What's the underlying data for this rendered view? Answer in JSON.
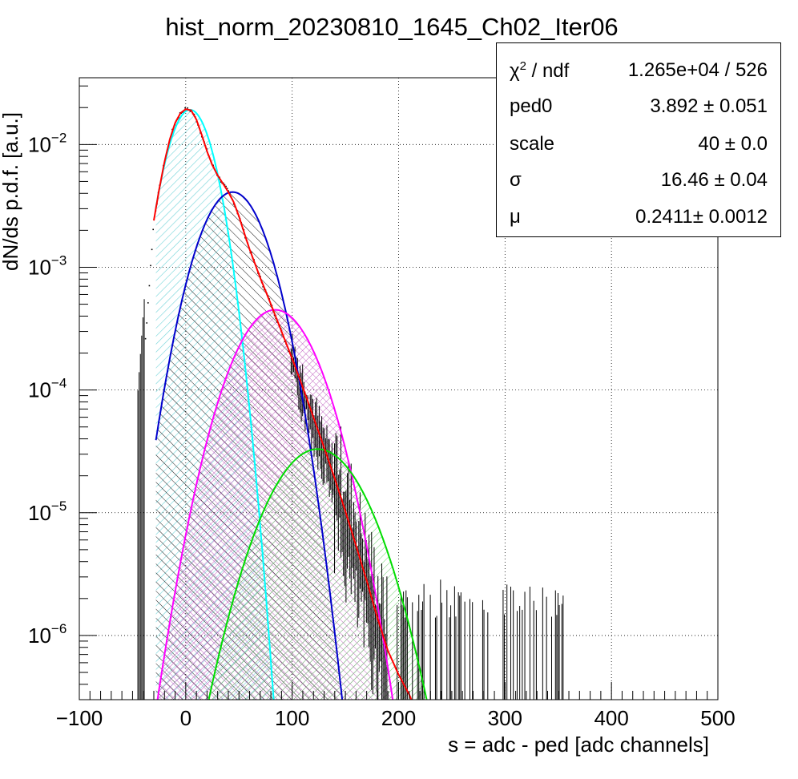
{
  "chart_data": {
    "type": "line",
    "title": "hist_norm_20230810_1645_Ch02_Iter06",
    "xlabel": "s = adc - ped [adc channels]",
    "ylabel": "dN/ds p.d.f. [a.u.]",
    "x_range": [
      -100,
      500
    ],
    "y_range": [
      3e-07,
      0.035
    ],
    "y_scale": "log",
    "grid": true,
    "x_ticks": [
      "−100",
      "0",
      "100",
      "200",
      "300",
      "400",
      "500"
    ],
    "y_ticks": [
      {
        "base": "10",
        "exp": "−2",
        "value": 0.01
      },
      {
        "base": "10",
        "exp": "−3",
        "value": 0.001
      },
      {
        "base": "10",
        "exp": "−4",
        "value": 0.0001
      },
      {
        "base": "10",
        "exp": "−5",
        "value": 1e-05
      },
      {
        "base": "10",
        "exp": "−6",
        "value": 1e-06
      }
    ],
    "series": [
      {
        "color": "#ff0000",
        "style": "total fit",
        "x": [
          -30,
          -25,
          -20,
          -15,
          -10,
          -5,
          0,
          5,
          10,
          15,
          20,
          25,
          30,
          35,
          40,
          45,
          50,
          55,
          60,
          70,
          80,
          90,
          100,
          110,
          120,
          130,
          140,
          150,
          160,
          170,
          180,
          190,
          200,
          210,
          212
        ],
        "y": [
          0.0024,
          0.0043,
          0.0072,
          0.011,
          0.015,
          0.018,
          0.0194,
          0.019,
          0.016,
          0.012,
          0.0088,
          0.0068,
          0.0056,
          0.0048,
          0.0041,
          0.0034,
          0.0026,
          0.0019,
          0.0014,
          0.00082,
          0.0005,
          0.0003,
          0.00018,
          0.000105,
          6e-05,
          3.4e-05,
          1.9e-05,
          1.03e-05,
          5.4e-06,
          2.8e-06,
          1.4e-06,
          7.5e-07,
          4.8e-07,
          3.3e-07,
          3e-07
        ]
      },
      {
        "color": "#00ffff",
        "fill": "#7fd8dd",
        "mean": 4,
        "sigma": 16.7,
        "peak": 0.0192,
        "xmin": -28,
        "xmax": 120
      },
      {
        "color": "#0000cc",
        "fill": "#000000",
        "mean": 44,
        "sigma": 23.6,
        "peak": 0.0041,
        "xmin": -28,
        "xmax": 250
      },
      {
        "color": "#ff00ff",
        "fill": "#d070d0",
        "mean": 84,
        "sigma": 28.9,
        "peak": 0.00045,
        "xmin": -28,
        "xmax": 250
      },
      {
        "color": "#00dd00",
        "fill": "#70d070",
        "mean": 124,
        "sigma": 33.4,
        "peak": 3.3e-05,
        "xmin": -28,
        "xmax": 250
      }
    ],
    "data_points_note": "black histogram markers follow total fit"
  },
  "stats": {
    "rows": [
      {
        "label_base": "χ",
        "label_sup": "2",
        "label_rest": " / ndf",
        "value": "1.265e+04 / 526"
      },
      {
        "label_base": "ped0",
        "label_sup": "",
        "label_rest": "",
        "value": "3.892 ± 0.051"
      },
      {
        "label_base": "scale",
        "label_sup": "",
        "label_rest": "",
        "value": "40 ± 0.0"
      },
      {
        "label_base": "σ",
        "label_sup": "",
        "label_rest": "",
        "value": "16.46 ± 0.04"
      },
      {
        "label_base": "μ",
        "label_sup": "",
        "label_rest": "",
        "value": "0.2411± 0.0012"
      }
    ]
  }
}
